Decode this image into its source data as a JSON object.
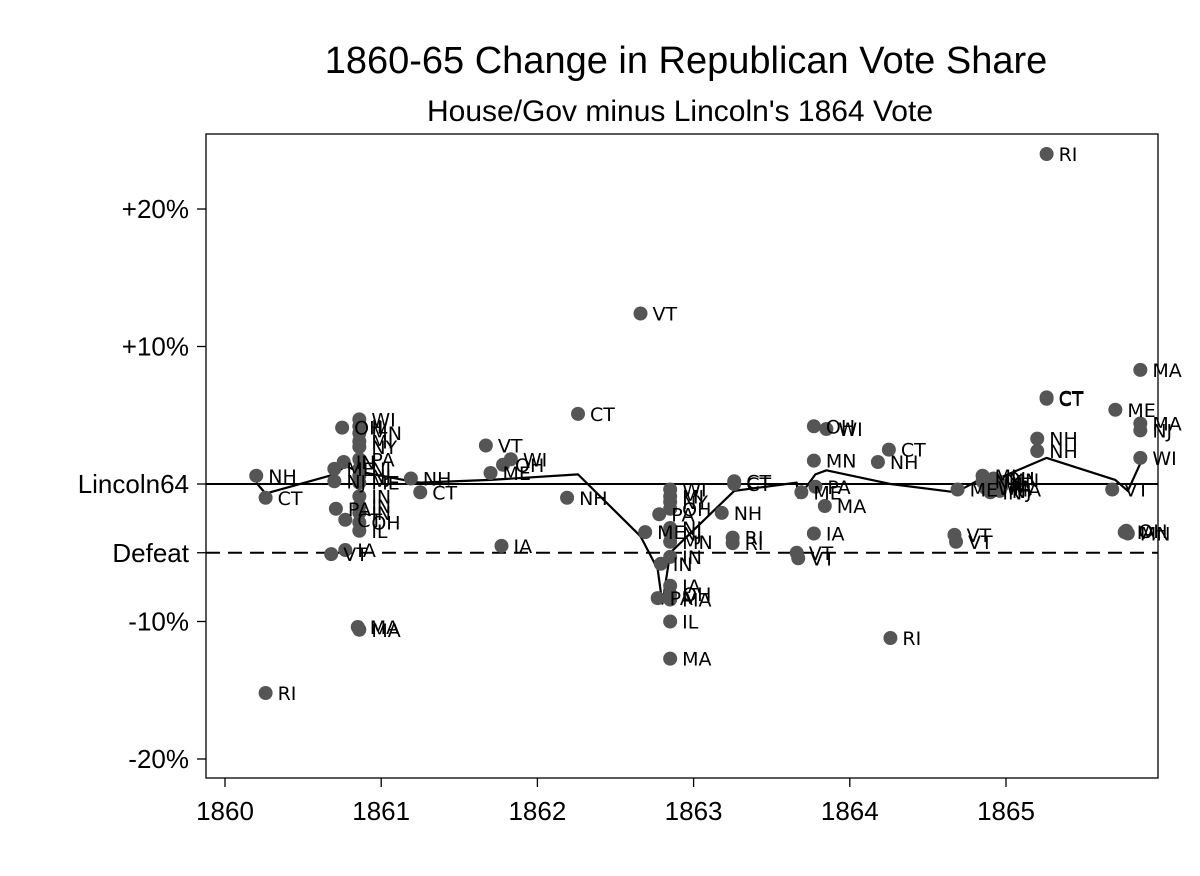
{
  "chart_data": {
    "type": "scatter",
    "title": "1860-65 Change in Republican Vote Share",
    "subtitle": "House/Gov minus Lincoln's 1864 Vote",
    "xlabel": "",
    "ylabel": "",
    "xlim": [
      1859.9,
      1865.98
    ],
    "ylim": [
      -21.5,
      25
    ],
    "grid": false,
    "x_ticks": [
      {
        "value": 1860,
        "label": "1860"
      },
      {
        "value": 1861,
        "label": "1861"
      },
      {
        "value": 1862,
        "label": "1862"
      },
      {
        "value": 1863,
        "label": "1863"
      },
      {
        "value": 1864,
        "label": "1864"
      },
      {
        "value": 1865,
        "label": "1865"
      }
    ],
    "y_ticks": [
      {
        "value": 20,
        "label": "+20%"
      },
      {
        "value": 10,
        "label": "+10%"
      },
      {
        "value": 0,
        "label": "Lincoln64"
      },
      {
        "value": -5,
        "label": "Defeat"
      },
      {
        "value": -10,
        "label": "-10%"
      },
      {
        "value": -20,
        "label": "-20%"
      }
    ],
    "reference_lines": [
      {
        "y": 0,
        "style": "solid"
      },
      {
        "y": -5,
        "style": "dashed"
      }
    ],
    "points": [
      {
        "label": "NH",
        "x": 1860.2,
        "y": 0.6
      },
      {
        "label": "CT",
        "x": 1860.26,
        "y": -1.0
      },
      {
        "label": "RI",
        "x": 1860.26,
        "y": -15.2
      },
      {
        "label": "ME",
        "x": 1860.7,
        "y": 1.1
      },
      {
        "label": "VT",
        "x": 1860.68,
        "y": -5.1
      },
      {
        "label": "NJ",
        "x": 1860.7,
        "y": 0.2
      },
      {
        "label": "PA",
        "x": 1860.71,
        "y": -1.8
      },
      {
        "label": "OH",
        "x": 1860.75,
        "y": 4.1
      },
      {
        "label": "IN",
        "x": 1860.76,
        "y": 1.6
      },
      {
        "label": "IA",
        "x": 1860.77,
        "y": -4.8
      },
      {
        "label": "CT",
        "x": 1860.77,
        "y": -2.6
      },
      {
        "label": "MA",
        "x": 1860.85,
        "y": -10.4
      },
      {
        "label": "MA",
        "x": 1860.86,
        "y": -10.6
      },
      {
        "label": "WI",
        "x": 1860.86,
        "y": 4.7
      },
      {
        "label": "IL",
        "x": 1860.86,
        "y": 4.2
      },
      {
        "label": "MN",
        "x": 1860.86,
        "y": 3.7
      },
      {
        "label": "MI",
        "x": 1860.86,
        "y": 3.1
      },
      {
        "label": "NY",
        "x": 1860.86,
        "y": 2.7
      },
      {
        "label": "PA",
        "x": 1860.86,
        "y": 1.8
      },
      {
        "label": "NJ",
        "x": 1860.86,
        "y": 1.1
      },
      {
        "label": "NJ",
        "x": 1860.86,
        "y": 0.6
      },
      {
        "label": "ME",
        "x": 1860.86,
        "y": 0.1
      },
      {
        "label": "IN",
        "x": 1860.86,
        "y": -0.9
      },
      {
        "label": "IN",
        "x": 1860.86,
        "y": -1.6
      },
      {
        "label": "IN",
        "x": 1860.86,
        "y": -2.1
      },
      {
        "label": "OH",
        "x": 1860.86,
        "y": -2.8
      },
      {
        "label": "IL",
        "x": 1860.86,
        "y": -3.4
      },
      {
        "label": "NH",
        "x": 1861.19,
        "y": 0.4
      },
      {
        "label": "CT",
        "x": 1861.25,
        "y": -0.6
      },
      {
        "label": "VT",
        "x": 1861.67,
        "y": 2.8
      },
      {
        "label": "ME",
        "x": 1861.7,
        "y": 0.8
      },
      {
        "label": "WI",
        "x": 1861.83,
        "y": 1.8
      },
      {
        "label": "OH",
        "x": 1861.78,
        "y": 1.4
      },
      {
        "label": "IA",
        "x": 1861.77,
        "y": -4.5
      },
      {
        "label": "NH",
        "x": 1862.19,
        "y": -1.0
      },
      {
        "label": "CT",
        "x": 1862.26,
        "y": 5.1
      },
      {
        "label": "VT",
        "x": 1862.66,
        "y": 12.4
      },
      {
        "label": "ME",
        "x": 1862.69,
        "y": -3.5
      },
      {
        "label": "PA",
        "x": 1862.78,
        "y": -2.2
      },
      {
        "label": "PA",
        "x": 1862.77,
        "y": -8.3
      },
      {
        "label": "IN",
        "x": 1862.79,
        "y": -5.8
      },
      {
        "label": "WI",
        "x": 1862.85,
        "y": -0.4
      },
      {
        "label": "MI",
        "x": 1862.85,
        "y": -0.9
      },
      {
        "label": "NY",
        "x": 1862.85,
        "y": -1.3
      },
      {
        "label": "OH",
        "x": 1862.85,
        "y": -1.8
      },
      {
        "label": "NJ",
        "x": 1862.85,
        "y": -3.2
      },
      {
        "label": "NJ",
        "x": 1862.85,
        "y": -3.6
      },
      {
        "label": "MN",
        "x": 1862.85,
        "y": -4.2
      },
      {
        "label": "IN",
        "x": 1862.85,
        "y": -5.3
      },
      {
        "label": "IA",
        "x": 1862.85,
        "y": -7.4
      },
      {
        "label": "OH",
        "x": 1862.85,
        "y": -8.0
      },
      {
        "label": "MA",
        "x": 1862.85,
        "y": -8.4
      },
      {
        "label": "IL",
        "x": 1862.85,
        "y": -10.0
      },
      {
        "label": "MA",
        "x": 1862.85,
        "y": -12.7
      },
      {
        "label": "NH",
        "x": 1863.18,
        "y": -2.1
      },
      {
        "label": "CT",
        "x": 1863.26,
        "y": 0.2
      },
      {
        "label": "CT",
        "x": 1863.26,
        "y": 0.0
      },
      {
        "label": "RI",
        "x": 1863.25,
        "y": -3.9
      },
      {
        "label": "RI",
        "x": 1863.25,
        "y": -4.3
      },
      {
        "label": "VT",
        "x": 1863.66,
        "y": -5.0
      },
      {
        "label": "VT",
        "x": 1863.67,
        "y": -5.4
      },
      {
        "label": "ME",
        "x": 1863.69,
        "y": -0.6
      },
      {
        "label": "PA",
        "x": 1863.78,
        "y": -0.2
      },
      {
        "label": "MN",
        "x": 1863.77,
        "y": 1.7
      },
      {
        "label": "OH",
        "x": 1863.77,
        "y": 4.2
      },
      {
        "label": "WI",
        "x": 1863.85,
        "y": 4.0
      },
      {
        "label": "IA",
        "x": 1863.77,
        "y": -3.6
      },
      {
        "label": "MA",
        "x": 1863.84,
        "y": -1.6
      },
      {
        "label": "NH",
        "x": 1864.18,
        "y": 1.6
      },
      {
        "label": "CT",
        "x": 1864.25,
        "y": 2.5
      },
      {
        "label": "RI",
        "x": 1864.26,
        "y": -11.2
      },
      {
        "label": "VT",
        "x": 1864.67,
        "y": -3.7
      },
      {
        "label": "VT",
        "x": 1864.68,
        "y": -4.2
      },
      {
        "label": "ME",
        "x": 1864.69,
        "y": -0.4
      },
      {
        "label": "MI",
        "x": 1864.85,
        "y": 0.6
      },
      {
        "label": "NY",
        "x": 1864.85,
        "y": 0.2
      },
      {
        "label": "WI",
        "x": 1864.87,
        "y": -0.3
      },
      {
        "label": "PA",
        "x": 1864.94,
        "y": -0.3
      },
      {
        "label": "OH",
        "x": 1864.92,
        "y": 0.4
      },
      {
        "label": "IL",
        "x": 1864.96,
        "y": 0.0
      },
      {
        "label": "IN",
        "x": 1864.9,
        "y": -0.6
      },
      {
        "label": "NJ",
        "x": 1864.96,
        "y": -0.5
      },
      {
        "label": "MN",
        "x": 1864.94,
        "y": 0.3
      },
      {
        "label": "IA",
        "x": 1864.97,
        "y": -0.2
      },
      {
        "label": "MA",
        "x": 1864.96,
        "y": -0.4
      },
      {
        "label": "CT",
        "x": 1865.26,
        "y": 6.2
      },
      {
        "label": "CT",
        "x": 1865.26,
        "y": 6.3
      },
      {
        "label": "RI",
        "x": 1865.26,
        "y": 24.0
      },
      {
        "label": "NH",
        "x": 1865.2,
        "y": 3.3
      },
      {
        "label": "NH",
        "x": 1865.2,
        "y": 2.4
      },
      {
        "label": "ME",
        "x": 1865.7,
        "y": 5.4
      },
      {
        "label": "VT",
        "x": 1865.68,
        "y": -0.4
      },
      {
        "label": "MA",
        "x": 1865.86,
        "y": 8.3
      },
      {
        "label": "MA",
        "x": 1865.86,
        "y": 4.4
      },
      {
        "label": "NJ",
        "x": 1865.86,
        "y": 3.9
      },
      {
        "label": "WI",
        "x": 1865.86,
        "y": 1.9
      },
      {
        "label": "OH",
        "x": 1865.77,
        "y": -3.4
      },
      {
        "label": "MN",
        "x": 1865.78,
        "y": -3.6
      },
      {
        "label": "IA",
        "x": 1865.76,
        "y": -3.5
      }
    ],
    "trend_line": {
      "x": [
        1860.2,
        1860.26,
        1860.7,
        1860.77,
        1860.86,
        1861.19,
        1861.25,
        1861.7,
        1862.26,
        1862.66,
        1862.77,
        1862.8,
        1862.85,
        1863.26,
        1863.66,
        1863.67,
        1863.78,
        1863.85,
        1864.26,
        1864.68,
        1864.86,
        1864.95,
        1865.26,
        1865.7,
        1865.78,
        1865.86
      ],
      "y": [
        0.1,
        -0.7,
        0.7,
        1.3,
        0.9,
        0.2,
        0.1,
        0.3,
        0.7,
        -3.8,
        -6.2,
        -8.7,
        -5.0,
        -0.5,
        0.1,
        -1.0,
        0.7,
        1.0,
        0.0,
        -0.6,
        0.5,
        0.4,
        1.9,
        0.3,
        -0.5,
        1.5
      ]
    }
  }
}
